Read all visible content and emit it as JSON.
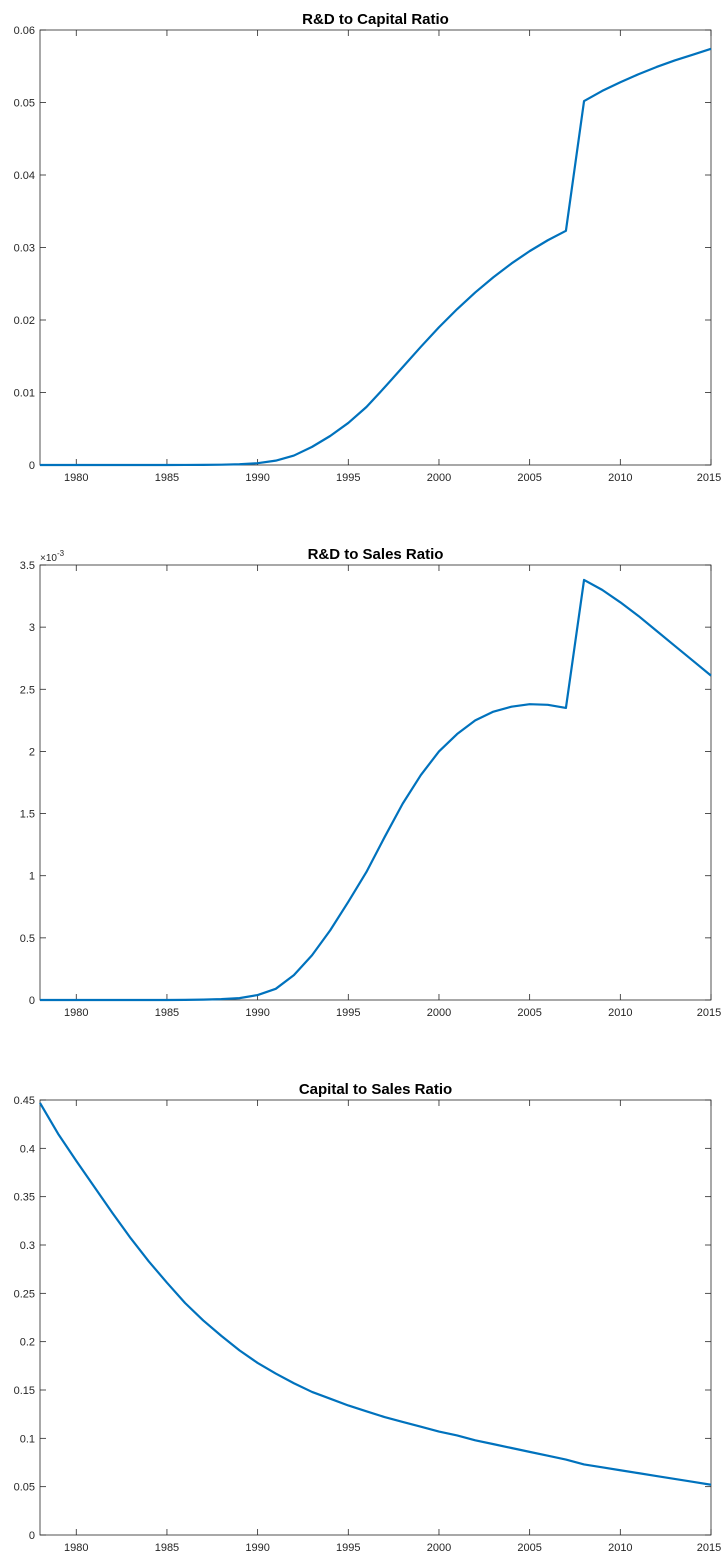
{
  "chart_data": [
    {
      "type": "line",
      "title": "R&D to Capital Ratio",
      "xlabel": "",
      "ylabel": "",
      "exponent_label": "",
      "xlim": [
        1978,
        2015
      ],
      "ylim": [
        0,
        0.06
      ],
      "xticks": [
        1980,
        1985,
        1990,
        1995,
        2000,
        2005,
        2010,
        2015
      ],
      "yticks": [
        0,
        0.01,
        0.02,
        0.03,
        0.04,
        0.05,
        0.06
      ],
      "ytick_labels": [
        "0",
        "0.01",
        "0.02",
        "0.03",
        "0.04",
        "0.05",
        "0.06"
      ],
      "series": [
        {
          "color": "#0072BD",
          "x": [
            1978,
            1979,
            1980,
            1981,
            1982,
            1983,
            1984,
            1985,
            1986,
            1987,
            1988,
            1989,
            1990,
            1991,
            1992,
            1993,
            1994,
            1995,
            1996,
            1997,
            1998,
            1999,
            2000,
            2001,
            2002,
            2003,
            2004,
            2005,
            2006,
            2007,
            2008,
            2009,
            2010,
            2011,
            2012,
            2013,
            2014,
            2015
          ],
          "y": [
            0,
            0,
            0,
            0,
            0,
            0,
            0,
            0,
            1e-05,
            2e-05,
            4e-05,
            0.0001,
            0.00025,
            0.0006,
            0.0013,
            0.0025,
            0.004,
            0.0058,
            0.008,
            0.0107,
            0.0135,
            0.0163,
            0.019,
            0.0215,
            0.0238,
            0.0259,
            0.0278,
            0.0295,
            0.031,
            0.0323,
            0.0502,
            0.0516,
            0.0528,
            0.0539,
            0.0549,
            0.0558,
            0.0566,
            0.0574
          ]
        }
      ],
      "grid": false,
      "legend": "none"
    },
    {
      "type": "line",
      "title": "R&D to Sales Ratio",
      "xlabel": "",
      "ylabel": "",
      "exponent_label": "×10",
      "exponent_power": "-3",
      "xlim": [
        1978,
        2015
      ],
      "ylim": [
        0,
        3.5
      ],
      "xticks": [
        1980,
        1985,
        1990,
        1995,
        2000,
        2005,
        2010,
        2015
      ],
      "yticks": [
        0,
        0.5,
        1,
        1.5,
        2,
        2.5,
        3,
        3.5
      ],
      "ytick_labels": [
        "0",
        "0.5",
        "1",
        "1.5",
        "2",
        "2.5",
        "3",
        "3.5"
      ],
      "series": [
        {
          "color": "#0072BD",
          "x": [
            1978,
            1979,
            1980,
            1981,
            1982,
            1983,
            1984,
            1985,
            1986,
            1987,
            1988,
            1989,
            1990,
            1991,
            1992,
            1993,
            1994,
            1995,
            1996,
            1997,
            1998,
            1999,
            2000,
            2001,
            2002,
            2003,
            2004,
            2005,
            2006,
            2007,
            2008,
            2009,
            2010,
            2011,
            2012,
            2013,
            2014,
            2015
          ],
          "y": [
            0,
            0,
            0,
            0,
            0,
            0,
            0,
            0,
            0.001,
            0.003,
            0.007,
            0.015,
            0.04,
            0.09,
            0.2,
            0.36,
            0.56,
            0.79,
            1.03,
            1.31,
            1.58,
            1.81,
            2.0,
            2.14,
            2.25,
            2.32,
            2.36,
            2.38,
            2.375,
            2.35,
            3.38,
            3.3,
            3.2,
            3.09,
            2.97,
            2.85,
            2.73,
            2.61
          ]
        }
      ],
      "grid": false,
      "legend": "none"
    },
    {
      "type": "line",
      "title": "Capital to Sales Ratio",
      "xlabel": "",
      "ylabel": "",
      "exponent_label": "",
      "xlim": [
        1978,
        2015
      ],
      "ylim": [
        0,
        0.45
      ],
      "xticks": [
        1980,
        1985,
        1990,
        1995,
        2000,
        2005,
        2010,
        2015
      ],
      "yticks": [
        0,
        0.05,
        0.1,
        0.15,
        0.2,
        0.25,
        0.3,
        0.35,
        0.4,
        0.45
      ],
      "ytick_labels": [
        "0",
        "0.05",
        "0.1",
        "0.15",
        "0.2",
        "0.25",
        "0.3",
        "0.35",
        "0.4",
        "0.45"
      ],
      "series": [
        {
          "color": "#0072BD",
          "x": [
            1978,
            1979,
            1980,
            1981,
            1982,
            1983,
            1984,
            1985,
            1986,
            1987,
            1988,
            1989,
            1990,
            1991,
            1992,
            1993,
            1994,
            1995,
            1996,
            1997,
            1998,
            1999,
            2000,
            2001,
            2002,
            2003,
            2004,
            2005,
            2006,
            2007,
            2008,
            2009,
            2010,
            2011,
            2012,
            2013,
            2014,
            2015
          ],
          "y": [
            0.447,
            0.415,
            0.387,
            0.36,
            0.333,
            0.307,
            0.283,
            0.261,
            0.24,
            0.222,
            0.206,
            0.191,
            0.178,
            0.167,
            0.157,
            0.148,
            0.141,
            0.134,
            0.128,
            0.122,
            0.117,
            0.112,
            0.107,
            0.103,
            0.098,
            0.094,
            0.09,
            0.086,
            0.082,
            0.078,
            0.073,
            0.07,
            0.067,
            0.064,
            0.061,
            0.058,
            0.055,
            0.052
          ]
        }
      ],
      "grid": false,
      "legend": "none"
    }
  ]
}
